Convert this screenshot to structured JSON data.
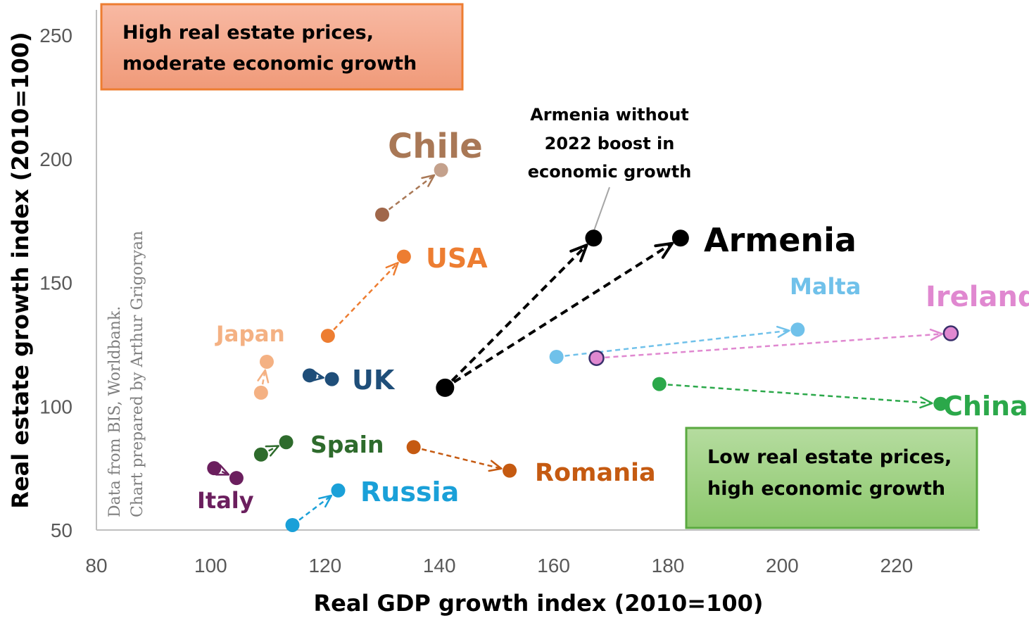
{
  "chart_data": {
    "type": "scatter",
    "xlabel": "Real GDP growth index (2010=100)",
    "ylabel": "Real estate growth index (2010=100)",
    "xlim": [
      80,
      235
    ],
    "ylim": [
      50,
      255
    ],
    "xticks": [
      80,
      100,
      120,
      140,
      160,
      180,
      200,
      220
    ],
    "yticks": [
      50,
      100,
      150,
      200,
      250
    ],
    "series": [
      {
        "name": "Chile",
        "color": "#a97856",
        "start_color": "#a0674a",
        "end_color": "#c4a18c",
        "start": [
          130,
          177.5
        ],
        "end": [
          140.3,
          195.5
        ]
      },
      {
        "name": "USA",
        "color": "#ed7d31",
        "start": [
          120.5,
          128.5
        ],
        "end": [
          133.8,
          160.5
        ]
      },
      {
        "name": "Japan",
        "color": "#f4b183",
        "start": [
          108.8,
          105.5
        ],
        "end": [
          109.8,
          118
        ]
      },
      {
        "name": "UK",
        "color": "#1f4e79",
        "start": [
          117.3,
          112.5
        ],
        "end": [
          121.2,
          111
        ]
      },
      {
        "name": "Armenia",
        "color": "#000000",
        "start": [
          141,
          107.5
        ],
        "end": [
          182.2,
          168
        ]
      },
      {
        "name": "Malta",
        "color": "#70c1ea",
        "start": [
          160.5,
          120
        ],
        "end": [
          202.7,
          131
        ]
      },
      {
        "name": "Ireland",
        "color": "#e088d0",
        "start": [
          167.5,
          119.5
        ],
        "end": [
          229.5,
          129.5
        ]
      },
      {
        "name": "China",
        "color": "#2ba84a",
        "start": [
          178.5,
          109
        ],
        "end": [
          227.7,
          101
        ]
      },
      {
        "name": "Spain",
        "color": "#2e6b2c",
        "start": [
          108.8,
          80.5
        ],
        "end": [
          113.2,
          85.5
        ]
      },
      {
        "name": "Romania",
        "color": "#c55a11",
        "start": [
          135.5,
          83.5
        ],
        "end": [
          152.3,
          74
        ]
      },
      {
        "name": "Italy",
        "color": "#6b1f5e",
        "start": [
          100.6,
          75
        ],
        "end": [
          104.5,
          71
        ]
      },
      {
        "name": "Russia",
        "color": "#1aa0d8",
        "start": [
          114.3,
          52
        ],
        "end": [
          122.3,
          66
        ]
      }
    ],
    "armenia_no_boost": {
      "color": "#000000",
      "start": [
        141,
        107.5
      ],
      "end": [
        167,
        168
      ]
    },
    "annotations": {
      "armenia_note": [
        "Armenia without",
        "2022 boost in",
        "economic growth"
      ],
      "top_box": [
        "High real estate prices,",
        "moderate economic growth"
      ],
      "bottom_box": [
        "Low real estate prices,",
        "high economic growth"
      ],
      "credit": [
        "Data from BIS, Worldbank.",
        "Chart prepared by Arthur Grigoryan"
      ]
    },
    "colors": {
      "axis": "#bfbfbf",
      "top_box_fill_from": "#f8b9a3",
      "top_box_fill_to": "#f09a79",
      "top_box_border": "#ed7d31",
      "bottom_box_fill_from": "#b5dc9f",
      "bottom_box_fill_to": "#8dc86d",
      "bottom_box_border": "#5aa940"
    }
  }
}
